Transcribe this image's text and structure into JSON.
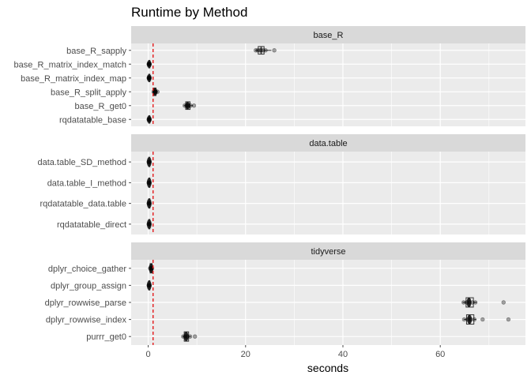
{
  "chart_data": {
    "type": "box",
    "title": "Runtime by Method",
    "xlabel": "seconds",
    "ylabel": "",
    "xlim": [
      -3.5,
      77.5
    ],
    "x_ticks": [
      0,
      20,
      40,
      60
    ],
    "x_tick_labels": [
      "0",
      "20",
      "40",
      "60"
    ],
    "reference_line": {
      "x": 1,
      "color": "#e41a1c",
      "style": "dashed"
    },
    "colors": {
      "panel": "#ebebeb",
      "grid": "#ffffff",
      "strip": "#d9d9d9",
      "points": "#000000"
    },
    "grid": true,
    "legend": "none",
    "facets": [
      {
        "name": "base_R",
        "rows": [
          {
            "label": "base_R_sapply",
            "q1": 22.6,
            "median": 23.2,
            "q3": 23.8,
            "whisker_low": 22.0,
            "whisker_high": 25.3,
            "points": [
              22.1,
              22.5,
              22.9,
              23.2,
              23.6,
              24.1,
              25.9
            ]
          },
          {
            "label": "base_R_matrix_index_match",
            "q1": 0.1,
            "median": 0.2,
            "q3": 0.3,
            "whisker_low": 0.0,
            "whisker_high": 0.4,
            "points": [
              0.1,
              0.2,
              0.2,
              0.3
            ]
          },
          {
            "label": "base_R_matrix_index_map",
            "q1": 0.1,
            "median": 0.2,
            "q3": 0.3,
            "whisker_low": 0.0,
            "whisker_high": 0.4,
            "points": [
              0.1,
              0.2,
              0.2,
              0.3
            ]
          },
          {
            "label": "base_R_split_apply",
            "q1": 1.2,
            "median": 1.4,
            "q3": 1.6,
            "whisker_low": 1.0,
            "whisker_high": 2.0,
            "points": [
              1.1,
              1.3,
              1.5,
              1.9
            ]
          },
          {
            "label": "base_R_get0",
            "q1": 7.7,
            "median": 8.1,
            "q3": 8.6,
            "whisker_low": 7.3,
            "whisker_high": 9.2,
            "points": [
              7.5,
              7.9,
              8.2,
              8.7,
              9.4
            ]
          },
          {
            "label": "rqdatatable_base",
            "q1": 0.1,
            "median": 0.2,
            "q3": 0.3,
            "whisker_low": 0.0,
            "whisker_high": 0.4,
            "points": [
              0.1,
              0.2,
              0.3
            ]
          }
        ]
      },
      {
        "name": "data.table",
        "rows": [
          {
            "label": "data.table_SD_method",
            "q1": 0.1,
            "median": 0.2,
            "q3": 0.3,
            "whisker_low": 0.0,
            "whisker_high": 0.4,
            "points": [
              0.1,
              0.2,
              0.3
            ]
          },
          {
            "label": "data.table_I_method",
            "q1": 0.1,
            "median": 0.2,
            "q3": 0.3,
            "whisker_low": 0.0,
            "whisker_high": 0.4,
            "points": [
              0.1,
              0.2,
              0.3
            ]
          },
          {
            "label": "rqdatatable_data.table",
            "q1": 0.1,
            "median": 0.2,
            "q3": 0.3,
            "whisker_low": 0.0,
            "whisker_high": 0.4,
            "points": [
              0.1,
              0.2,
              0.3
            ]
          },
          {
            "label": "rqdatatable_direct",
            "q1": 0.1,
            "median": 0.2,
            "q3": 0.3,
            "whisker_low": 0.0,
            "whisker_high": 0.4,
            "points": [
              0.1,
              0.2,
              0.3
            ]
          }
        ]
      },
      {
        "name": "tidyverse",
        "rows": [
          {
            "label": "dplyr_choice_gather",
            "q1": 0.4,
            "median": 0.6,
            "q3": 0.8,
            "whisker_low": 0.2,
            "whisker_high": 1.0,
            "points": [
              0.4,
              0.6,
              0.8
            ]
          },
          {
            "label": "dplyr_group_assign",
            "q1": 0.1,
            "median": 0.2,
            "q3": 0.3,
            "whisker_low": 0.0,
            "whisker_high": 0.4,
            "points": [
              0.1,
              0.2,
              0.3
            ]
          },
          {
            "label": "dplyr_rowwise_parse",
            "q1": 65.3,
            "median": 65.9,
            "q3": 66.8,
            "whisker_low": 64.6,
            "whisker_high": 67.5,
            "points": [
              64.8,
              65.4,
              66.0,
              66.6,
              67.2,
              73.0
            ]
          },
          {
            "label": "dplyr_rowwise_index",
            "q1": 65.4,
            "median": 66.0,
            "q3": 66.9,
            "whisker_low": 64.8,
            "whisker_high": 67.4,
            "points": [
              64.9,
              65.6,
              66.3,
              67.0,
              68.7,
              74.0
            ]
          },
          {
            "label": "purrr_get0",
            "q1": 7.4,
            "median": 7.8,
            "q3": 8.3,
            "whisker_low": 7.0,
            "whisker_high": 8.8,
            "points": [
              7.2,
              7.6,
              8.0,
              8.6,
              9.6
            ]
          }
        ]
      }
    ]
  }
}
